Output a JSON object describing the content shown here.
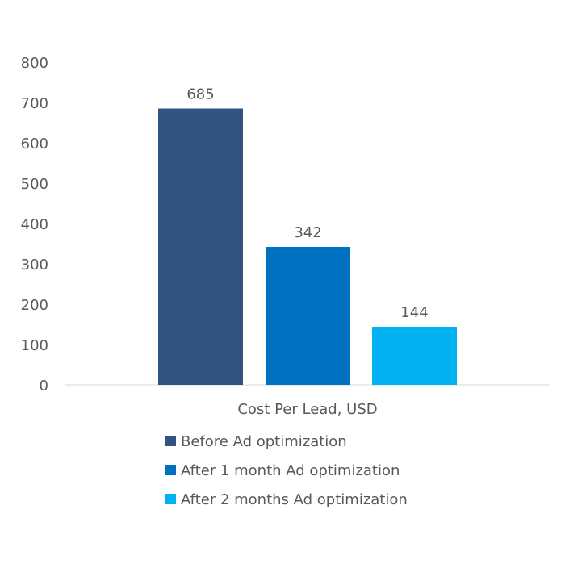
{
  "chart_data": {
    "type": "bar",
    "title": "",
    "xlabel": "",
    "ylabel": "",
    "categories": [
      "Cost Per Lead, USD"
    ],
    "ylim": [
      0,
      800
    ],
    "yticks": [
      "0",
      "100",
      "200",
      "300",
      "400",
      "500",
      "600",
      "700",
      "800"
    ],
    "grid": false,
    "legend_position": "bottom",
    "series": [
      {
        "name": "Before Ad optimization",
        "values": [
          685
        ],
        "label": "685",
        "color": "#2F5480"
      },
      {
        "name": "After 1 month Ad optimization",
        "values": [
          342
        ],
        "label": "342",
        "color": "#0070C0"
      },
      {
        "name": "After 2 months Ad optimization",
        "values": [
          144
        ],
        "label": "144",
        "color": "#00B0F0"
      }
    ]
  }
}
